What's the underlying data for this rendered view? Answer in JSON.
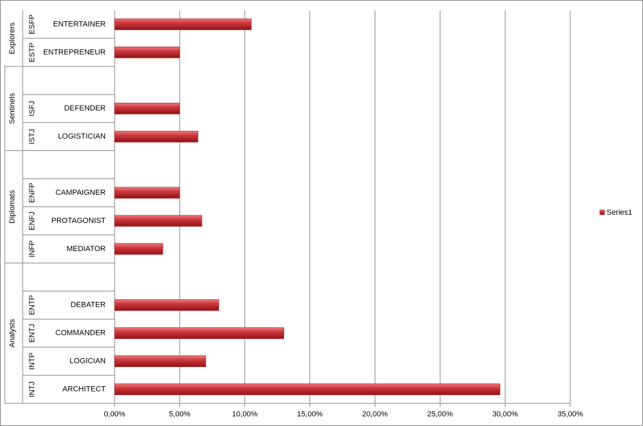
{
  "chart_data": {
    "type": "bar",
    "orientation": "horizontal",
    "groups": [
      {
        "name": "Analysts",
        "codes": [
          "INTJ",
          "INTP",
          "ENTJ",
          "ENTP",
          null
        ],
        "categories": [
          "ARCHITECT",
          "LOGICIAN",
          "COMMANDER",
          "DEBATER",
          null
        ]
      },
      {
        "name": "Diplomats",
        "codes": [
          "INFP",
          "ENFJ",
          "ENFP",
          null
        ],
        "categories": [
          "MEDIATOR",
          "PROTAGONIST",
          "CAMPAIGNER",
          null
        ]
      },
      {
        "name": "Sentinels",
        "codes": [
          "ISTJ",
          "ISFJ",
          null
        ],
        "categories": [
          "LOGISTICIAN",
          "DEFENDER",
          null
        ]
      },
      {
        "name": "Explorers",
        "codes": [
          "ESTP",
          "ESFP"
        ],
        "categories": [
          "ENTREPRENEUR",
          "ENTERTAINER"
        ]
      }
    ],
    "series": [
      {
        "name": "Series1",
        "color": "#c0282d",
        "values": [
          29.6,
          7.0,
          13.0,
          8.0,
          null,
          3.7,
          6.7,
          5.0,
          null,
          6.4,
          5.0,
          null,
          5.0,
          10.5
        ]
      }
    ],
    "xlim": [
      0,
      35
    ],
    "xticks": [
      {
        "value": 0,
        "label": "0,00%"
      },
      {
        "value": 5,
        "label": "5,00%"
      },
      {
        "value": 10,
        "label": "10,00%"
      },
      {
        "value": 15,
        "label": "15,00%"
      },
      {
        "value": 20,
        "label": "20,00%"
      },
      {
        "value": 25,
        "label": "25,00%"
      },
      {
        "value": 30,
        "label": "30,00%"
      },
      {
        "value": 35,
        "label": "35,00%"
      }
    ],
    "grid": true,
    "legend": "right"
  }
}
